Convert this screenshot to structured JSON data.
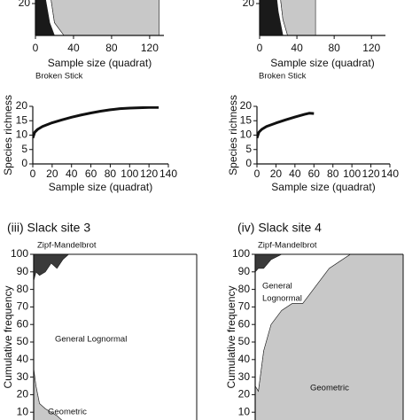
{
  "chart_data": [
    {
      "type": "area",
      "xlabel": "Sample size (quadrat)",
      "xlim": [
        0,
        135
      ],
      "xticks": [
        0,
        40,
        80,
        120
      ],
      "ylim": [
        0,
        100
      ],
      "yticks": [
        20
      ],
      "annotations": [
        "Broken Stick"
      ],
      "x": [
        0,
        5,
        10,
        15,
        20,
        30,
        40,
        60,
        80,
        100,
        120,
        130
      ],
      "series": [
        {
          "color": "#1a1a1a",
          "values": [
            100,
            60,
            25,
            8,
            0,
            0,
            0,
            0,
            0,
            0,
            0,
            0
          ]
        },
        {
          "color": "#ffffff",
          "values": [
            0,
            40,
            60,
            20,
            8,
            0,
            0,
            0,
            0,
            0,
            0,
            0
          ]
        },
        {
          "color": "#c8c8c8",
          "values": [
            0,
            0,
            15,
            72,
            92,
            100,
            100,
            100,
            100,
            100,
            100,
            100
          ]
        }
      ]
    },
    {
      "type": "area",
      "xlabel": "Sample size (quadrat)",
      "xlim": [
        0,
        135
      ],
      "xticks": [
        0,
        40,
        80,
        120
      ],
      "ylim": [
        0,
        100
      ],
      "yticks": [
        20
      ],
      "annotations": [
        "Broken Stick"
      ],
      "x": [
        0,
        5,
        10,
        15,
        20,
        25,
        30,
        40,
        50,
        60
      ],
      "series": [
        {
          "color": "#1a1a1a",
          "values": [
            100,
            80,
            60,
            40,
            15,
            0,
            0,
            0,
            0,
            0
          ]
        },
        {
          "color": "#ffffff",
          "values": [
            0,
            20,
            30,
            30,
            20,
            10,
            0,
            0,
            0,
            0
          ]
        },
        {
          "color": "#c8c8c8",
          "values": [
            0,
            0,
            10,
            30,
            65,
            90,
            100,
            100,
            100,
            100
          ]
        }
      ]
    },
    {
      "type": "line",
      "xlabel": "Sample size (quadrat)",
      "ylabel": "Species richness",
      "xlim": [
        0,
        140
      ],
      "xticks": [
        0,
        20,
        40,
        60,
        80,
        100,
        120,
        140
      ],
      "ylim": [
        0,
        20
      ],
      "yticks": [
        0,
        5,
        10,
        15,
        20
      ],
      "x": [
        0,
        2,
        5,
        10,
        20,
        30,
        40,
        50,
        60,
        70,
        80,
        90,
        100,
        110,
        120,
        130
      ],
      "series": [
        {
          "color": "#111111",
          "values": [
            9,
            11,
            12,
            13,
            14.3,
            15.3,
            16.2,
            17,
            17.7,
            18.3,
            18.8,
            19.2,
            19.4,
            19.5,
            19.6,
            19.6
          ]
        }
      ]
    },
    {
      "type": "line",
      "xlabel": "Sample size (quadrat)",
      "ylabel": "Species richness",
      "xlim": [
        0,
        140
      ],
      "xticks": [
        0,
        20,
        40,
        60,
        80,
        100,
        120,
        140
      ],
      "ylim": [
        0,
        20
      ],
      "yticks": [
        0,
        5,
        10,
        15,
        20
      ],
      "x": [
        0,
        2,
        5,
        10,
        20,
        30,
        40,
        50,
        55,
        60
      ],
      "series": [
        {
          "color": "#111111",
          "values": [
            9,
            11,
            12,
            13,
            14.2,
            15.3,
            16.3,
            17.2,
            17.6,
            17.5
          ]
        }
      ]
    },
    {
      "type": "area",
      "title": "(iii) Slack site 3",
      "ylabel": "Cumulative frequency",
      "xlim": [
        0,
        140
      ],
      "ylim": [
        0,
        100
      ],
      "yticks": [
        10,
        20,
        30,
        40,
        50,
        60,
        70,
        80,
        90,
        100
      ],
      "annotations": [
        "Zipf-Mandelbrot",
        "General Lognormal",
        "Geometric"
      ],
      "x": [
        0,
        2,
        5,
        10,
        15,
        20,
        25,
        30,
        60,
        100,
        140
      ],
      "series": [
        {
          "color": "#c8c8c8",
          "values": [
            35,
            25,
            15,
            12,
            10,
            8,
            5,
            3,
            0,
            0,
            0
          ]
        },
        {
          "color": "#ffffff",
          "values": [
            50,
            65,
            73,
            78,
            85,
            84,
            92,
            97,
            100,
            100,
            100
          ]
        },
        {
          "color": "#3a3a3a",
          "values": [
            15,
            10,
            12,
            10,
            5,
            8,
            3,
            0,
            0,
            0,
            0
          ]
        }
      ]
    },
    {
      "type": "area",
      "title": "(iv) Slack site 4",
      "ylabel": "Cumulative frequency",
      "xlim": [
        0,
        140
      ],
      "ylim": [
        0,
        100
      ],
      "yticks": [
        10,
        20,
        30,
        40,
        50,
        60,
        70,
        80,
        90,
        100
      ],
      "annotations": [
        "Zipf-Mandelbrot",
        "General",
        "Lognormal",
        "Geometric"
      ],
      "x": [
        0,
        3,
        8,
        15,
        25,
        35,
        45,
        55,
        70,
        90,
        110,
        140
      ],
      "series": [
        {
          "color": "#c8c8c8",
          "values": [
            25,
            22,
            45,
            60,
            68,
            72,
            72,
            80,
            92,
            100,
            100,
            100
          ]
        },
        {
          "color": "#ffffff",
          "values": [
            65,
            70,
            47,
            37,
            32,
            28,
            28,
            20,
            8,
            0,
            0,
            0
          ]
        },
        {
          "color": "#3a3a3a",
          "values": [
            10,
            8,
            8,
            3,
            0,
            0,
            0,
            0,
            0,
            0,
            0,
            0
          ]
        }
      ]
    }
  ]
}
